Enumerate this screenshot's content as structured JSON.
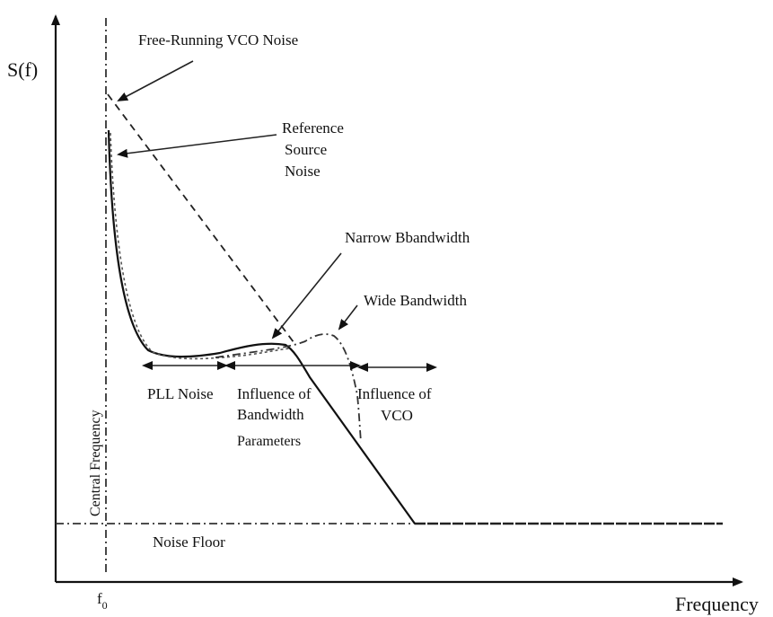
{
  "axes": {
    "y_label": "S(f)",
    "x_label": "Frequency",
    "f0_label": "f",
    "f0_subscript": "0"
  },
  "labels": {
    "free_running_vco_noise": "Free-Running VCO Noise",
    "reference_source_noise_1": "Reference",
    "reference_source_noise_2": "Source",
    "reference_source_noise_3": "Noise",
    "narrow_bandwidth": "Narrow Bbandwidth",
    "wide_bandwidth": "Wide Bandwidth",
    "pll_noise": "PLL Noise",
    "influence_bandwidth_1": "Influence of",
    "influence_bandwidth_2": "Bandwidth",
    "influence_bandwidth_3": "Parameters",
    "influence_vco_1": "Influence of",
    "influence_vco_2": "VCO",
    "central_frequency": "Central Frequency",
    "noise_floor": "Noise Floor"
  },
  "colors": {
    "ink": "#111111",
    "background": "#ffffff"
  }
}
